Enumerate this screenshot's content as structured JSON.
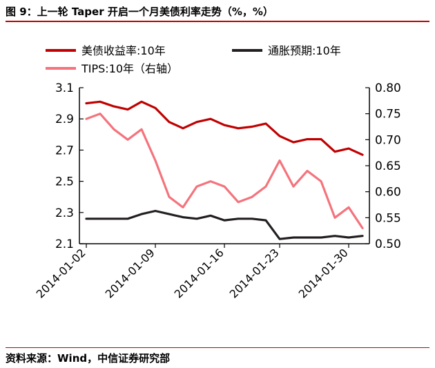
{
  "header": {
    "title": "图 9：上一轮 Taper 开启一个月美债利率走势（%，%）"
  },
  "footer": {
    "source": "资料来源：Wind，中信证券研究部"
  },
  "chart_data": {
    "type": "line",
    "x": [
      "2014-01-02",
      "2014-01-03",
      "2014-01-06",
      "2014-01-07",
      "2014-01-08",
      "2014-01-09",
      "2014-01-10",
      "2014-01-13",
      "2014-01-14",
      "2014-01-15",
      "2014-01-16",
      "2014-01-17",
      "2014-01-21",
      "2014-01-22",
      "2014-01-23",
      "2014-01-24",
      "2014-01-27",
      "2014-01-28",
      "2014-01-29",
      "2014-01-30",
      "2014-01-31"
    ],
    "x_tick_labels": [
      "2014-01-02",
      "2014-01-09",
      "2014-01-16",
      "2014-01-23",
      "2014-01-30"
    ],
    "series": [
      {
        "name": "美债收益率:10年",
        "axis": "left",
        "color": "#c00000",
        "values": [
          3.0,
          3.01,
          2.98,
          2.96,
          3.01,
          2.97,
          2.88,
          2.84,
          2.88,
          2.9,
          2.86,
          2.84,
          2.85,
          2.87,
          2.79,
          2.75,
          2.77,
          2.77,
          2.69,
          2.71,
          2.67
        ]
      },
      {
        "name": "通胀预期:10年",
        "axis": "left",
        "color": "#231f20",
        "values": [
          2.26,
          2.26,
          2.26,
          2.26,
          2.29,
          2.31,
          2.29,
          2.27,
          2.26,
          2.28,
          2.25,
          2.26,
          2.26,
          2.25,
          2.13,
          2.14,
          2.14,
          2.14,
          2.15,
          2.14,
          2.15
        ]
      },
      {
        "name": "TIPS:10年（右轴）",
        "axis": "right",
        "color": "#f4737c",
        "values": [
          0.74,
          0.75,
          0.72,
          0.7,
          0.72,
          0.66,
          0.59,
          0.57,
          0.61,
          0.62,
          0.61,
          0.58,
          0.59,
          0.61,
          0.66,
          0.61,
          0.64,
          0.62,
          0.55,
          0.57,
          0.53
        ]
      }
    ],
    "yleft": {
      "ylim": [
        2.1,
        3.1
      ],
      "ticks": [
        "2.1",
        "2.3",
        "2.5",
        "2.7",
        "2.9",
        "3.1"
      ]
    },
    "yright": {
      "ylim": [
        0.5,
        0.8
      ],
      "ticks": [
        "0.50",
        "0.55",
        "0.60",
        "0.65",
        "0.70",
        "0.75",
        "0.80"
      ]
    },
    "legend_position": "top",
    "grid": false
  }
}
